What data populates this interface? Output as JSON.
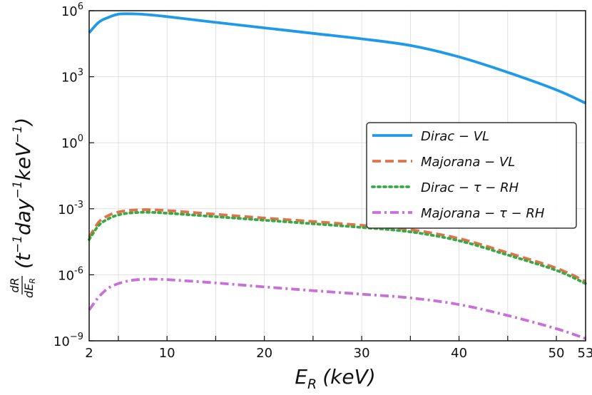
{
  "chart_data": {
    "type": "line",
    "x_scale": "linear",
    "y_scale": "log",
    "xlabel": "E_R (keV)",
    "xlabel_parts": {
      "main": "E",
      "sub": "R",
      "unit": "(keV)"
    },
    "ylabel_parts": {
      "frac_num": "dR",
      "frac_den": "dE",
      "frac_den_sub": "R",
      "t": "(t",
      "day": "day",
      "kev": "keV",
      "close": ")",
      "exp": "−1"
    },
    "xlim": [
      2,
      53
    ],
    "ylim_log10": [
      -9,
      6
    ],
    "x_ticks": [
      {
        "value": 2,
        "label": "2"
      },
      {
        "value": 10,
        "label": "10"
      },
      {
        "value": 20,
        "label": "20"
      },
      {
        "value": 30,
        "label": "30"
      },
      {
        "value": 40,
        "label": "40"
      },
      {
        "value": 50,
        "label": "50"
      },
      {
        "value": 53,
        "label": "53"
      }
    ],
    "y_ticks": [
      {
        "value": 6,
        "base": "10",
        "exp": "6"
      },
      {
        "value": 3,
        "base": "10",
        "exp": "3"
      },
      {
        "value": 0,
        "base": "10",
        "exp": "0"
      },
      {
        "value": -3,
        "base": "10",
        "exp": "-3"
      },
      {
        "value": -6,
        "base": "10",
        "exp": "-6"
      },
      {
        "value": -9,
        "base": "10",
        "exp": "−9"
      }
    ],
    "legend_position": "center-right",
    "grid": true,
    "x": [
      2,
      3,
      4,
      5,
      6,
      7,
      8,
      10,
      15,
      20,
      25,
      30,
      35,
      40,
      45,
      50,
      53
    ],
    "series": [
      {
        "name": "Dirac − VL",
        "legend": [
          "Dirac",
          "VL"
        ],
        "color": "#1f9ae8",
        "style": "solid",
        "log10_values": [
          5.0,
          5.48,
          5.7,
          5.84,
          5.86,
          5.85,
          5.82,
          5.73,
          5.47,
          5.22,
          4.97,
          4.72,
          4.42,
          3.9,
          3.2,
          2.4,
          1.8
        ]
      },
      {
        "name": "Majorana − VL",
        "legend": [
          "Majorana",
          "VL"
        ],
        "color": "#e0734a",
        "style": "dashed",
        "log10_values": [
          -4.3,
          -3.6,
          -3.3,
          -3.15,
          -3.08,
          -3.05,
          -3.04,
          -3.08,
          -3.25,
          -3.42,
          -3.58,
          -3.75,
          -3.95,
          -4.35,
          -5.0,
          -5.7,
          -6.3
        ]
      },
      {
        "name": "Dirac − τ − RH",
        "legend": [
          "Dirac",
          "τ",
          "RH"
        ],
        "color": "#3aa845",
        "style": "dotted",
        "log10_values": [
          -4.4,
          -3.75,
          -3.45,
          -3.28,
          -3.2,
          -3.17,
          -3.16,
          -3.2,
          -3.36,
          -3.52,
          -3.68,
          -3.85,
          -4.05,
          -4.45,
          -5.1,
          -5.8,
          -6.4
        ]
      },
      {
        "name": "Majorana − τ − RH",
        "legend": [
          "Majorana",
          "τ",
          "RH"
        ],
        "color": "#c86fd8",
        "style": "dashdot",
        "log10_values": [
          -7.6,
          -7.0,
          -6.6,
          -6.4,
          -6.28,
          -6.22,
          -6.2,
          -6.22,
          -6.37,
          -6.55,
          -6.72,
          -6.88,
          -7.05,
          -7.35,
          -7.85,
          -8.45,
          -8.9
        ]
      }
    ]
  }
}
